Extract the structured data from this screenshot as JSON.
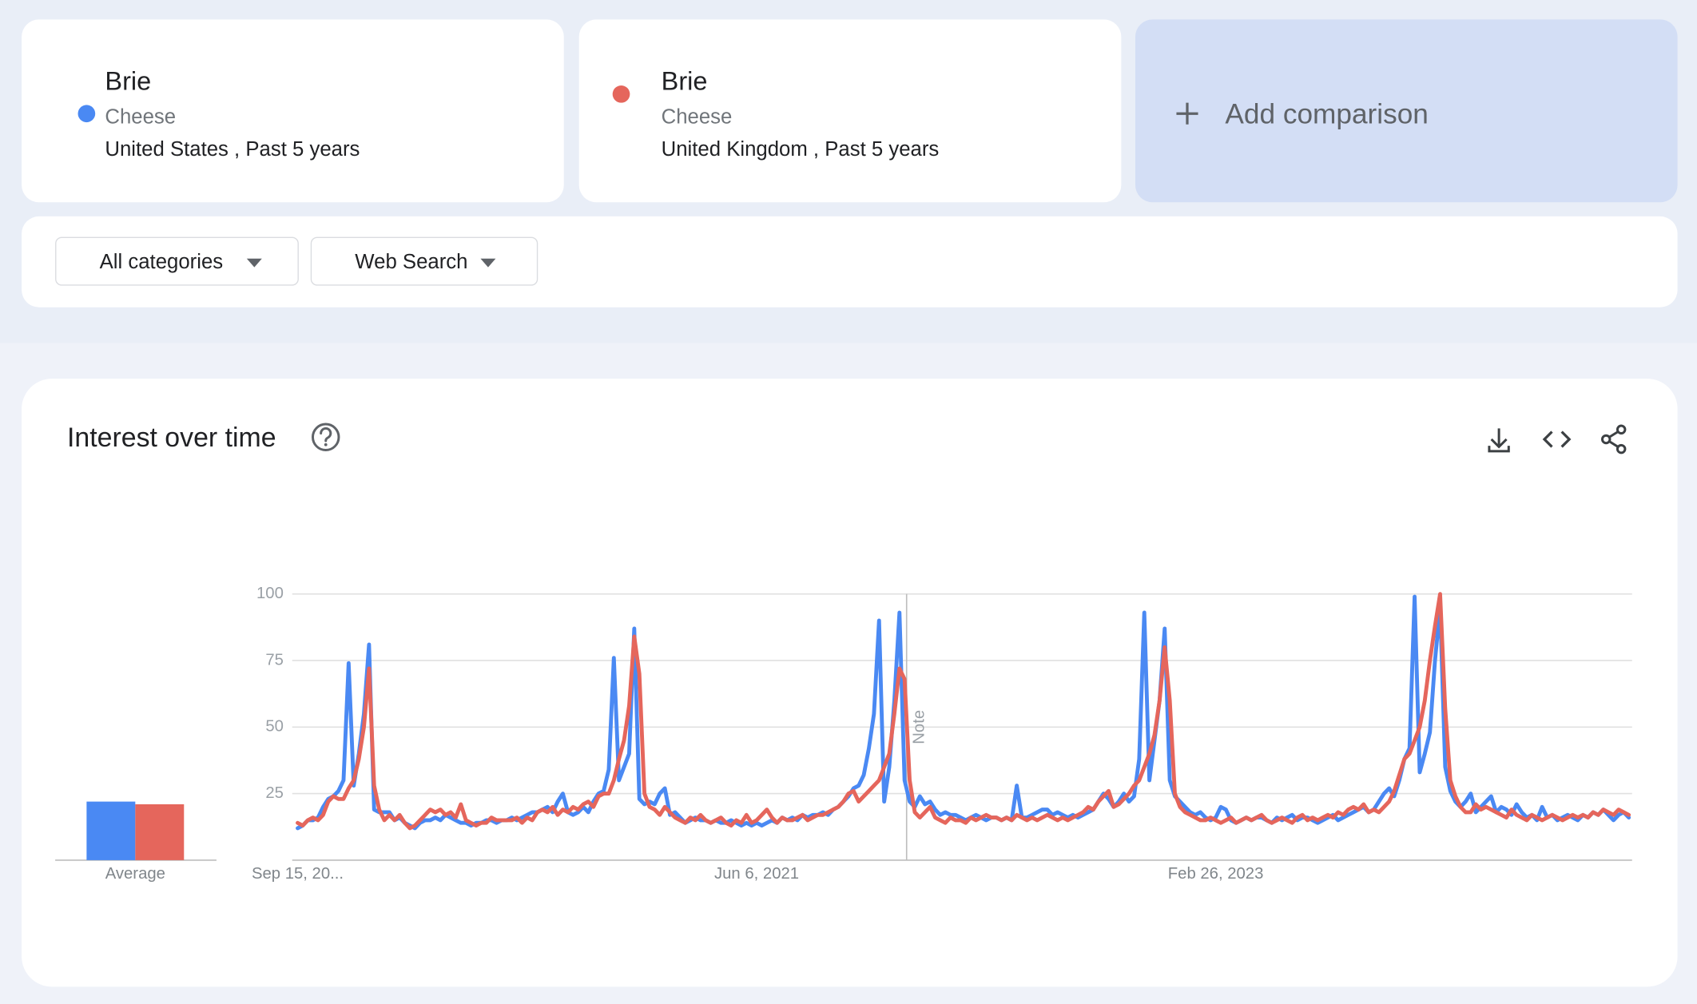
{
  "comparisons": [
    {
      "term": "Brie",
      "category": "Cheese",
      "details": "United States , Past 5 years",
      "color": "#4a89f3"
    },
    {
      "term": "Brie",
      "category": "Cheese",
      "details": "United Kingdom , Past 5 years",
      "color": "#e5665c"
    }
  ],
  "add_comparison": "Add comparison",
  "filters": [
    "All categories",
    "Web Search"
  ],
  "chart_data": [
    {
      "type": "bar",
      "xlabel": "Average",
      "ylim": [
        0,
        100
      ],
      "series": [
        {
          "color": "#4a89f3",
          "values": [
            22
          ]
        },
        {
          "color": "#e5665c",
          "values": [
            21
          ]
        }
      ]
    },
    {
      "type": "line",
      "title": "Interest over time",
      "annotations": [
        "Note"
      ],
      "ylim": [
        0,
        100
      ],
      "yticks": [
        25,
        50,
        75,
        100
      ],
      "grid": true,
      "categories": [
        "Sep 15, 20...",
        null,
        null,
        null,
        null,
        null,
        null,
        null,
        null,
        null,
        null,
        null,
        null,
        null,
        null,
        null,
        null,
        null,
        null,
        null,
        null,
        null,
        null,
        null,
        null,
        null,
        null,
        null,
        null,
        null,
        null,
        null,
        null,
        null,
        null,
        null,
        null,
        null,
        null,
        null,
        null,
        null,
        null,
        null,
        null,
        null,
        null,
        null,
        null,
        null,
        null,
        null,
        null,
        null,
        null,
        null,
        null,
        null,
        null,
        null,
        null,
        null,
        null,
        null,
        null,
        null,
        null,
        null,
        null,
        null,
        null,
        null,
        null,
        null,
        null,
        null,
        null,
        null,
        null,
        null,
        null,
        null,
        null,
        null,
        null,
        null,
        null,
        null,
        null,
        null,
        "Jun 6, 2021",
        null,
        null,
        null,
        null,
        null,
        null,
        null,
        null,
        null,
        null,
        null,
        null,
        null,
        null,
        null,
        null,
        null,
        null,
        null,
        null,
        null,
        null,
        null,
        null,
        null,
        null,
        null,
        null,
        null,
        null,
        null,
        null,
        null,
        null,
        null,
        null,
        null,
        null,
        null,
        null,
        null,
        null,
        null,
        null,
        null,
        null,
        null,
        null,
        null,
        null,
        null,
        null,
        null,
        null,
        null,
        null,
        null,
        null,
        null,
        null,
        null,
        null,
        null,
        null,
        null,
        null,
        null,
        null,
        null,
        null,
        null,
        null,
        null,
        null,
        null,
        null,
        null,
        null,
        null,
        null,
        null,
        null,
        null,
        null,
        null,
        null,
        null,
        null,
        null,
        "Feb 26, 2023",
        null,
        null,
        null,
        null,
        null,
        null,
        null,
        null,
        null,
        null,
        null,
        null,
        null,
        null,
        null,
        null,
        null,
        null,
        null,
        null,
        null,
        null,
        null,
        null,
        null,
        null,
        null,
        null,
        null,
        null,
        null,
        null,
        null,
        null,
        null,
        null,
        null,
        null,
        null,
        null,
        null,
        null,
        null,
        null,
        null,
        null,
        null,
        null,
        null,
        null,
        null,
        null,
        null,
        null,
        null,
        null,
        null,
        null,
        null,
        null,
        null,
        null,
        null,
        null,
        null,
        null,
        null,
        null,
        null,
        null,
        null,
        null,
        null,
        null,
        null,
        null,
        null,
        null,
        null,
        null,
        null
      ],
      "series": [
        {
          "color": "#4a89f3",
          "values": [
            12,
            13,
            15,
            15,
            16,
            20,
            23,
            24,
            26,
            30,
            74,
            28,
            40,
            55,
            81,
            19,
            18,
            18,
            18,
            15,
            16,
            14,
            13,
            12,
            14,
            15,
            15,
            16,
            15,
            17,
            16,
            15,
            14,
            14,
            13,
            14,
            14,
            15,
            15,
            14,
            15,
            15,
            16,
            15,
            16,
            17,
            18,
            18,
            19,
            20,
            18,
            22,
            25,
            18,
            17,
            18,
            20,
            18,
            22,
            25,
            26,
            34,
            76,
            30,
            35,
            40,
            87,
            23,
            21,
            22,
            21,
            25,
            27,
            17,
            18,
            16,
            14,
            15,
            16,
            15,
            15,
            14,
            15,
            14,
            14,
            15,
            14,
            13,
            14,
            13,
            14,
            13,
            14,
            15,
            14,
            16,
            15,
            16,
            15,
            17,
            16,
            17,
            17,
            18,
            17,
            19,
            20,
            22,
            24,
            27,
            28,
            32,
            42,
            55,
            90,
            22,
            35,
            60,
            93,
            30,
            22,
            20,
            24,
            21,
            22,
            19,
            17,
            18,
            17,
            17,
            16,
            15,
            16,
            17,
            16,
            15,
            16,
            16,
            15,
            16,
            15,
            28,
            16,
            16,
            17,
            18,
            19,
            19,
            17,
            18,
            17,
            16,
            17,
            16,
            17,
            18,
            19,
            22,
            25,
            23,
            20,
            22,
            25,
            22,
            24,
            38,
            93,
            30,
            45,
            60,
            87,
            30,
            24,
            22,
            20,
            18,
            17,
            18,
            16,
            15,
            16,
            20,
            19,
            15,
            14,
            15,
            16,
            15,
            16,
            16,
            15,
            14,
            16,
            15,
            16,
            17,
            15,
            16,
            16,
            15,
            14,
            15,
            16,
            17,
            15,
            16,
            17,
            18,
            19,
            20,
            18,
            19,
            22,
            25,
            27,
            24,
            30,
            38,
            42,
            99,
            33,
            40,
            48,
            75,
            95,
            35,
            26,
            22,
            20,
            22,
            25,
            18,
            20,
            22,
            24,
            18,
            20,
            19,
            17,
            21,
            18,
            16,
            17,
            15,
            20,
            16,
            17,
            15,
            16,
            17,
            16,
            15,
            17,
            16,
            18,
            17,
            19,
            17,
            15,
            17,
            18,
            16
          ]
        },
        {
          "color": "#e5665c",
          "values": [
            14,
            13,
            15,
            16,
            15,
            17,
            22,
            24,
            23,
            23,
            27,
            30,
            38,
            50,
            72,
            28,
            19,
            15,
            17,
            15,
            17,
            14,
            12,
            13,
            15,
            17,
            19,
            18,
            19,
            17,
            18,
            16,
            21,
            15,
            14,
            13,
            14,
            14,
            16,
            15,
            15,
            15,
            15,
            16,
            14,
            16,
            15,
            18,
            19,
            18,
            20,
            17,
            19,
            18,
            20,
            19,
            21,
            22,
            20,
            24,
            25,
            25,
            30,
            38,
            45,
            58,
            84,
            70,
            25,
            20,
            19,
            17,
            20,
            18,
            16,
            15,
            14,
            16,
            15,
            17,
            15,
            14,
            15,
            16,
            14,
            13,
            15,
            14,
            17,
            14,
            15,
            17,
            19,
            16,
            14,
            16,
            15,
            15,
            16,
            17,
            15,
            16,
            17,
            17,
            18,
            19,
            20,
            22,
            25,
            26,
            22,
            24,
            26,
            28,
            30,
            35,
            40,
            55,
            72,
            68,
            30,
            18,
            16,
            18,
            20,
            16,
            15,
            14,
            16,
            15,
            15,
            14,
            16,
            15,
            16,
            17,
            16,
            16,
            15,
            16,
            15,
            17,
            16,
            15,
            16,
            15,
            16,
            17,
            16,
            15,
            16,
            15,
            16,
            17,
            18,
            20,
            19,
            22,
            24,
            26,
            20,
            21,
            23,
            25,
            28,
            30,
            35,
            40,
            47,
            60,
            80,
            60,
            25,
            20,
            18,
            17,
            16,
            15,
            15,
            16,
            15,
            14,
            15,
            16,
            14,
            15,
            16,
            15,
            16,
            17,
            15,
            14,
            15,
            16,
            15,
            14,
            16,
            17,
            15,
            16,
            15,
            16,
            17,
            16,
            18,
            17,
            19,
            20,
            19,
            21,
            18,
            19,
            18,
            20,
            22,
            26,
            32,
            38,
            40,
            45,
            50,
            60,
            75,
            88,
            100,
            57,
            30,
            24,
            20,
            18,
            18,
            21,
            19,
            20,
            19,
            18,
            17,
            16,
            19,
            17,
            16,
            15,
            17,
            16,
            15,
            16,
            17,
            16,
            15,
            16,
            17,
            16,
            17,
            16,
            18,
            17,
            19,
            18,
            17,
            19,
            18,
            17
          ]
        }
      ]
    }
  ]
}
